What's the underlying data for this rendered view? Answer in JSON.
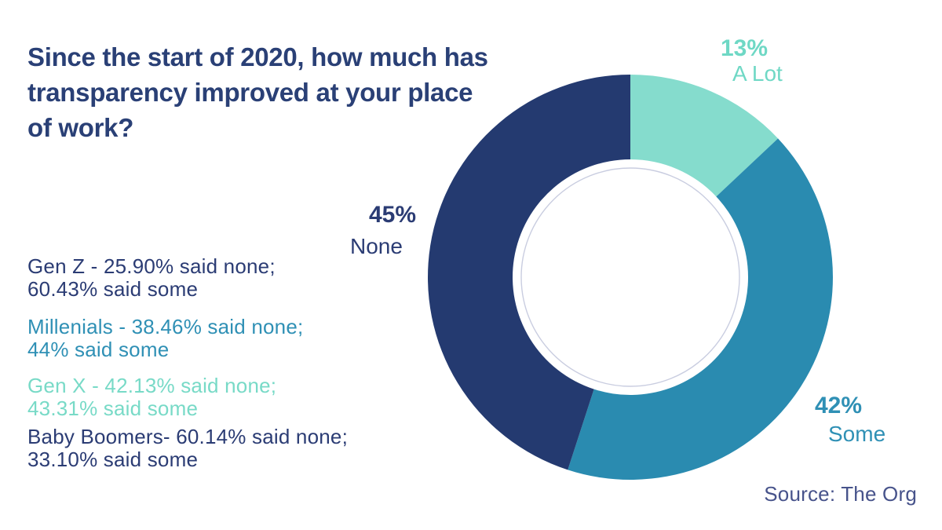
{
  "title": {
    "line1": "Since the start of 2020, how much has",
    "line2": "transparency improved at your place",
    "line3": "of work?"
  },
  "left_stats": {
    "items": [
      {
        "group": "Gen Z",
        "line1": "Gen Z - 25.90% said none;",
        "line2": "60.43% said some",
        "color": "#2b3c74"
      },
      {
        "group": "Millenials",
        "line1": "Millenials - 38.46% said none;",
        "line2": "44% said some",
        "color": "#2f90b5"
      },
      {
        "group": "Gen X",
        "line1": "Gen X - 42.13% said none;",
        "line2": "43.31% said some",
        "color": "#78dac7"
      },
      {
        "group": "Baby Boomers",
        "line1": "Baby Boomers- 60.14% said none;",
        "line2": "33.10% said some",
        "color": "#2b3c74"
      }
    ]
  },
  "chart_data": {
    "type": "pie",
    "subtype": "donut",
    "title": "Since the start of 2020, how much has transparency improved at your place of work?",
    "start_angle_deg": 0,
    "direction": "clockwise",
    "slices": [
      {
        "label": "A Lot",
        "value": 13,
        "pct_label": "13%",
        "color": "#85dccd",
        "label_color": "#6fd8c5"
      },
      {
        "label": "Some",
        "value": 42,
        "pct_label": "42%",
        "color": "#2a8bb0",
        "label_color": "#2f90b5"
      },
      {
        "label": "None",
        "value": 45,
        "pct_label": "45%",
        "color": "#243a70",
        "label_color": "#2b3c74"
      }
    ],
    "legend_position": "labels-around-donut",
    "inner_ring_color": "#c9cde0",
    "source": "Source: The Org"
  },
  "colors": {
    "background": "#ffffff",
    "title": "#2a4076",
    "navy": "#243a70",
    "teal": "#2a8bb0",
    "mint": "#85dccd",
    "source_text": "#47538b"
  }
}
